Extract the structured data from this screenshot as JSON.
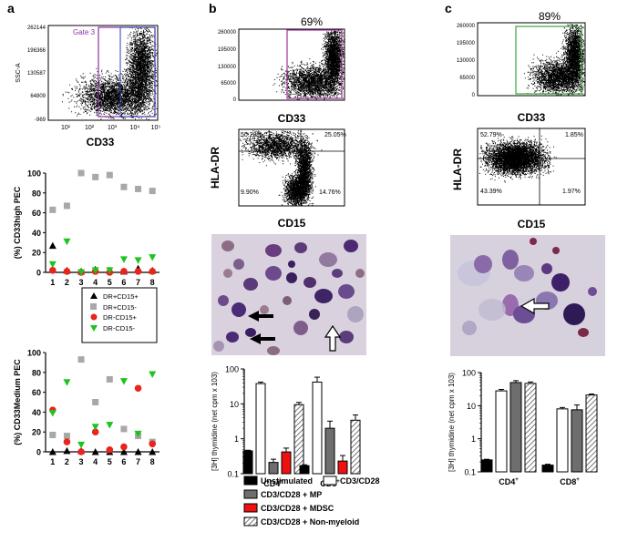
{
  "panels": {
    "a": "a",
    "b": "b",
    "c": "c"
  },
  "flow": {
    "a": {
      "gate_label": "Gate 3",
      "y_ticks": [
        "262144",
        "196366",
        "130587",
        "64809",
        "-969"
      ],
      "y_label": "SSC-A",
      "x_ticks": [
        "10¹",
        "10²",
        "10³",
        "10⁴",
        "10⁵"
      ],
      "x_label": "CD33",
      "gate_color": "#8b2fa3"
    },
    "b": {
      "percent": "69%",
      "y_ticks": [
        "260000",
        "195000",
        "130000",
        "65000",
        "0"
      ],
      "x_label": "CD33",
      "gate_color": "#a0309c",
      "quad_y_label": "HLA-DR",
      "quad_x_label": "CD15",
      "quadrants": {
        "ul": "50.28%",
        "ur": "25.05%",
        "ll": "9.90%",
        "lr": "14.76%"
      }
    },
    "c": {
      "percent": "89%",
      "y_ticks": [
        "260000",
        "195000",
        "130000",
        "65000",
        "0"
      ],
      "x_label": "CD33",
      "gate_color": "#3aa63a",
      "quad_y_label": "HLA-DR",
      "quad_x_label": "CD15",
      "quadrants": {
        "ul": "52.79%",
        "ur": "1.85%",
        "ll": "43.39%",
        "lr": "1.97%"
      }
    }
  },
  "chart_data": [
    {
      "type": "scatter",
      "ylabel": "(%) CD33high PEC",
      "ylim": [
        0,
        100
      ],
      "y_ticks": [
        0,
        20,
        40,
        60,
        80,
        100
      ],
      "categories": [
        "1",
        "2",
        "3",
        "4",
        "5",
        "6",
        "7",
        "8"
      ],
      "series": [
        {
          "name": "DR+CD15+",
          "marker": "triangle",
          "color": "#000000",
          "values": [
            27,
            2,
            1,
            3,
            2,
            1,
            4,
            2
          ]
        },
        {
          "name": "DR+CD15-",
          "marker": "square",
          "color": "#a8a8a8",
          "values": [
            63,
            67,
            100,
            96,
            98,
            86,
            84,
            82
          ]
        },
        {
          "name": "DR-CD15+",
          "marker": "circle",
          "color": "#e8241c",
          "values": [
            2,
            1,
            0,
            1,
            0,
            1,
            1,
            1
          ]
        },
        {
          "name": "DR-CD15-",
          "marker": "triangle-down",
          "color": "#1ec41e",
          "values": [
            8,
            31,
            0,
            2,
            2,
            13,
            12,
            15
          ]
        }
      ],
      "legend": "below"
    },
    {
      "type": "scatter",
      "ylabel": "(%) CD33Medium PEC",
      "ylim": [
        0,
        100
      ],
      "y_ticks": [
        0,
        20,
        40,
        60,
        80,
        100
      ],
      "categories": [
        "1",
        "2",
        "3",
        "4",
        "5",
        "6",
        "7",
        "8"
      ],
      "series": [
        {
          "marker": "triangle",
          "color": "#000000",
          "values": [
            0,
            1,
            1,
            0,
            0,
            0,
            0,
            0
          ]
        },
        {
          "marker": "square",
          "color": "#a8a8a8",
          "values": [
            17,
            16,
            93,
            50,
            73,
            23,
            16,
            10
          ]
        },
        {
          "marker": "circle",
          "color": "#e8241c",
          "values": [
            42,
            10,
            0,
            20,
            2,
            5,
            64,
            8
          ]
        },
        {
          "marker": "triangle-down",
          "color": "#1ec41e",
          "values": [
            39,
            70,
            7,
            25,
            27,
            71,
            18,
            78
          ]
        }
      ]
    },
    {
      "type": "bar",
      "ylabel": "[3H] thymidine (net cpm x 103)",
      "log_scale": true,
      "ylim": [
        0.1,
        100
      ],
      "y_ticks": [
        "0.1",
        "1",
        "10",
        "100"
      ],
      "categories": [
        "CD4+",
        "CD8+"
      ],
      "series": [
        {
          "name": "Unstimulated",
          "fill": "#000000",
          "values": [
            0.45,
            0.17
          ],
          "err": [
            0.02,
            0.01
          ]
        },
        {
          "name": "CD3/CD28",
          "fill": "#ffffff",
          "values": [
            38,
            42
          ],
          "err": [
            4,
            16
          ]
        },
        {
          "name": "CD3/CD28 + MP",
          "fill": "#6e6e6e",
          "values": [
            0.21,
            2.0
          ],
          "err": [
            0.05,
            1.2
          ]
        },
        {
          "name": "CD3/CD28 + MDSC",
          "fill": "#ee1111",
          "values": [
            0.42,
            0.23
          ],
          "err": [
            0.12,
            0.1
          ]
        },
        {
          "name": "CD3/CD28 + Non-myeloid",
          "fill": "hatch",
          "values": [
            9.5,
            3.4
          ],
          "err": [
            1.5,
            1.4
          ]
        }
      ]
    },
    {
      "type": "bar",
      "ylabel": "[3H] thymidine (net cpm x 103)",
      "log_scale": true,
      "ylim": [
        0.1,
        100
      ],
      "y_ticks": [
        "0.1",
        "1",
        "10",
        "100"
      ],
      "categories": [
        "CD4+",
        "CD8+"
      ],
      "series": [
        {
          "name": "Unstimulated",
          "fill": "#000000",
          "values": [
            0.23,
            0.16
          ],
          "err": [
            0.01,
            0.01
          ]
        },
        {
          "name": "CD3/CD28",
          "fill": "#ffffff",
          "values": [
            28,
            8
          ],
          "err": [
            3,
            0.8
          ]
        },
        {
          "name": "CD3/CD28 + MP",
          "fill": "#6e6e6e",
          "values": [
            50,
            7.5
          ],
          "err": [
            7,
            3
          ]
        },
        {
          "name": "CD3/CD28 + Non-myeloid",
          "fill": "hatch",
          "values": [
            47,
            21
          ],
          "err": [
            5,
            1.5
          ]
        }
      ]
    }
  ],
  "bar_legend": [
    {
      "label": "Unstimulated",
      "fill": "#000000"
    },
    {
      "label": "CD3/CD28",
      "fill": "#ffffff"
    },
    {
      "label": "CD3/CD28 + MP",
      "fill": "#6e6e6e"
    },
    {
      "label": "CD3/CD28 + MDSC",
      "fill": "#ee1111"
    },
    {
      "label": "CD3/CD28 + Non-myeloid",
      "fill": "hatch"
    }
  ]
}
